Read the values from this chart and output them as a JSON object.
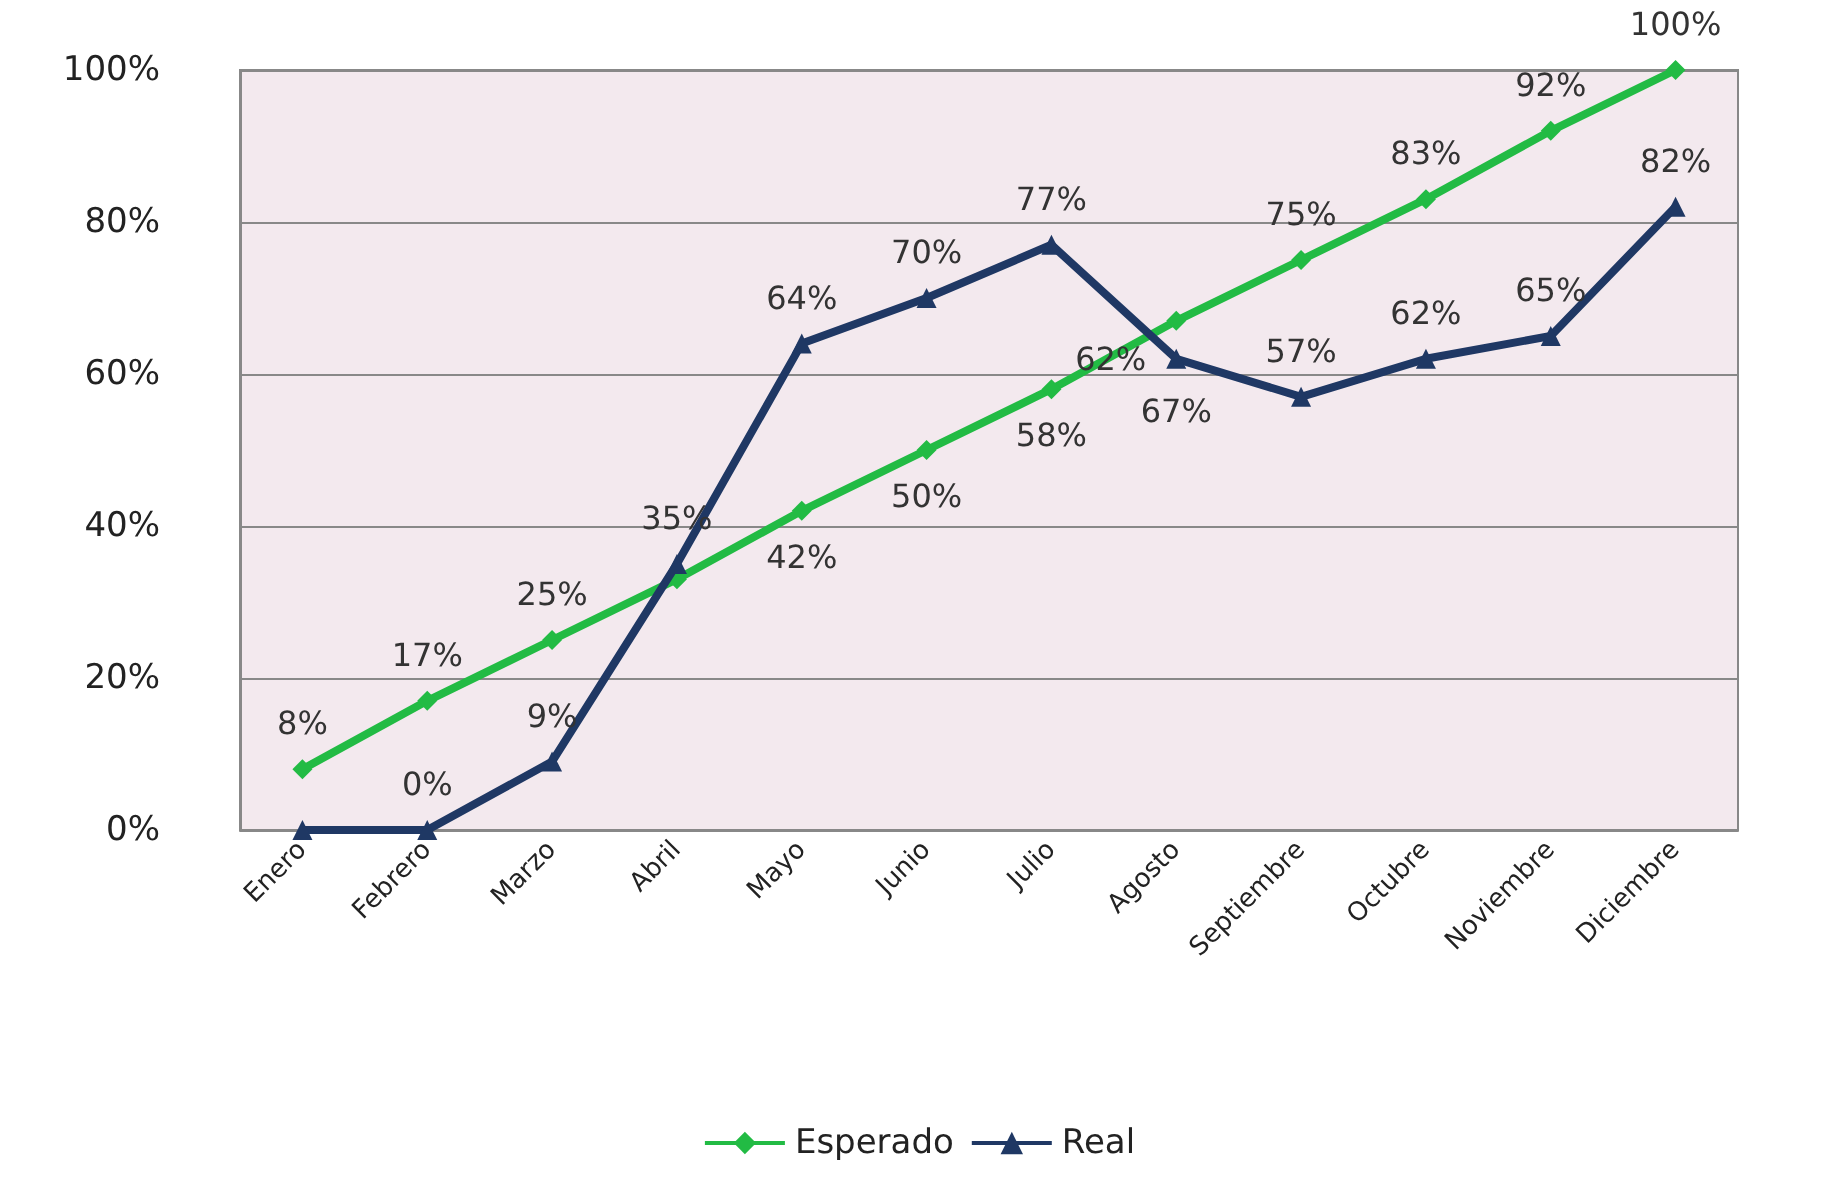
{
  "chart_data": {
    "type": "line",
    "categories": [
      "Enero",
      "Febrero",
      "Marzo",
      "Abril",
      "Mayo",
      "Junio",
      "Julio",
      "Agosto",
      "Septiembre",
      "Octubre",
      "Noviembre",
      "Diciembre"
    ],
    "series": [
      {
        "name": "Esperado",
        "color": "#22bb44",
        "marker": "diamond",
        "values": [
          8,
          17,
          25,
          33,
          42,
          50,
          58,
          67,
          75,
          83,
          92,
          100
        ],
        "value_labels": [
          "8%",
          "17%",
          "25%",
          null,
          "42%",
          "50%",
          "58%",
          "67%",
          "75%",
          "83%",
          "92%",
          "100%"
        ]
      },
      {
        "name": "Real",
        "color": "#1f3864",
        "marker": "triangle",
        "values": [
          0,
          0,
          9,
          35,
          64,
          70,
          77,
          62,
          57,
          62,
          65,
          82
        ],
        "value_labels": [
          null,
          "0%",
          "9%",
          "35%",
          "64%",
          "70%",
          "77%",
          "62%",
          "57%",
          "62%",
          "65%",
          "82%"
        ]
      }
    ],
    "ylim": [
      0,
      100
    ],
    "yticks": [
      {
        "value": 0,
        "label": "0%"
      },
      {
        "value": 20,
        "label": "20%"
      },
      {
        "value": 40,
        "label": "40%"
      },
      {
        "value": 60,
        "label": "60%"
      },
      {
        "value": 80,
        "label": "80%"
      },
      {
        "value": 100,
        "label": "100%"
      }
    ],
    "grid": "y",
    "legend": "bottom"
  }
}
